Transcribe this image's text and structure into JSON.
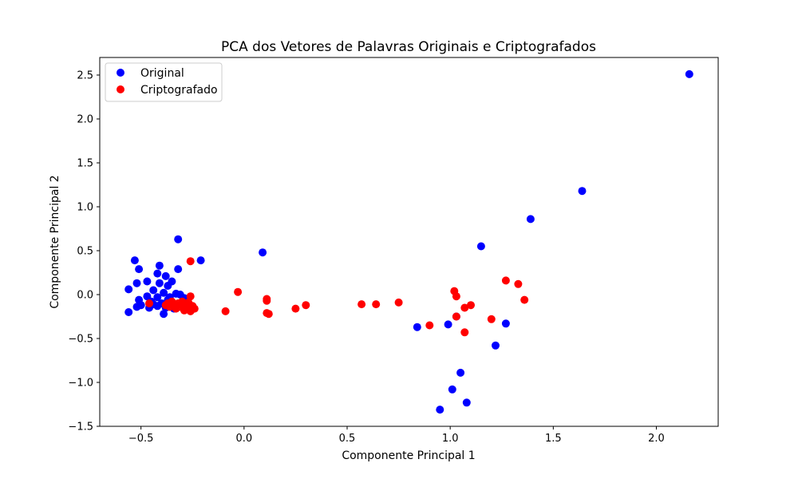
{
  "chart_data": {
    "type": "scatter",
    "title": "PCA dos Vetores de Palavras Originais e Criptografados",
    "xlabel": "Componente Principal 1",
    "ylabel": "Componente Principal 2",
    "xlim": [
      -0.7,
      2.3
    ],
    "ylim": [
      -1.5,
      2.7
    ],
    "xticks": [
      -0.5,
      0.0,
      0.5,
      1.0,
      1.5,
      2.0
    ],
    "xtick_labels": [
      "−0.5",
      "0.0",
      "0.5",
      "1.0",
      "1.5",
      "2.0"
    ],
    "yticks": [
      -1.5,
      -1.0,
      -0.5,
      0.0,
      0.5,
      1.0,
      1.5,
      2.0,
      2.5
    ],
    "ytick_labels": [
      "−1.5",
      "−1.0",
      "−0.5",
      "0.0",
      "0.5",
      "1.0",
      "1.5",
      "2.0",
      "2.5"
    ],
    "grid": false,
    "legend_position": "top-left",
    "series": [
      {
        "name": "Original",
        "color": "#0000ff",
        "points": [
          [
            2.16,
            2.51
          ],
          [
            1.64,
            1.18
          ],
          [
            1.39,
            0.86
          ],
          [
            1.15,
            0.55
          ],
          [
            1.27,
            -0.33
          ],
          [
            1.22,
            -0.58
          ],
          [
            1.05,
            -0.89
          ],
          [
            1.08,
            -1.23
          ],
          [
            1.01,
            -1.08
          ],
          [
            0.95,
            -1.31
          ],
          [
            0.84,
            -0.37
          ],
          [
            0.99,
            -0.34
          ],
          [
            1.03,
            -0.25
          ],
          [
            0.09,
            0.48
          ],
          [
            -0.32,
            0.63
          ],
          [
            -0.21,
            0.39
          ],
          [
            -0.53,
            0.39
          ],
          [
            -0.51,
            0.29
          ],
          [
            -0.41,
            0.33
          ],
          [
            -0.32,
            0.29
          ],
          [
            -0.42,
            0.24
          ],
          [
            -0.38,
            0.21
          ],
          [
            -0.35,
            0.15
          ],
          [
            -0.47,
            0.15
          ],
          [
            -0.41,
            0.13
          ],
          [
            -0.37,
            0.1
          ],
          [
            -0.52,
            0.13
          ],
          [
            -0.56,
            0.06
          ],
          [
            -0.44,
            0.05
          ],
          [
            -0.39,
            0.02
          ],
          [
            -0.33,
            0.01
          ],
          [
            -0.31,
            0.0
          ],
          [
            -0.47,
            -0.02
          ],
          [
            -0.42,
            -0.03
          ],
          [
            -0.36,
            -0.03
          ],
          [
            -0.29,
            -0.04
          ],
          [
            -0.51,
            -0.06
          ],
          [
            -0.45,
            -0.08
          ],
          [
            -0.4,
            -0.1
          ],
          [
            -0.35,
            -0.09
          ],
          [
            -0.5,
            -0.12
          ],
          [
            -0.42,
            -0.13
          ],
          [
            -0.46,
            -0.15
          ],
          [
            -0.38,
            -0.15
          ],
          [
            -0.52,
            -0.14
          ],
          [
            -0.56,
            -0.2
          ],
          [
            -0.39,
            -0.22
          ],
          [
            -0.34,
            -0.16
          ],
          [
            -0.44,
            -0.11
          ],
          [
            -0.37,
            -0.06
          ]
        ]
      },
      {
        "name": "Criptografado",
        "color": "#ff0000",
        "points": [
          [
            -0.26,
            0.38
          ],
          [
            -0.26,
            -0.02
          ],
          [
            -0.03,
            0.03
          ],
          [
            -0.09,
            -0.19
          ],
          [
            0.11,
            -0.05
          ],
          [
            0.11,
            -0.07
          ],
          [
            0.11,
            -0.21
          ],
          [
            0.12,
            -0.22
          ],
          [
            0.25,
            -0.16
          ],
          [
            0.3,
            -0.12
          ],
          [
            0.57,
            -0.11
          ],
          [
            0.64,
            -0.11
          ],
          [
            0.75,
            -0.09
          ],
          [
            0.9,
            -0.35
          ],
          [
            1.02,
            0.04
          ],
          [
            1.03,
            -0.02
          ],
          [
            1.03,
            -0.25
          ],
          [
            1.07,
            -0.15
          ],
          [
            1.1,
            -0.12
          ],
          [
            1.07,
            -0.43
          ],
          [
            1.2,
            -0.28
          ],
          [
            1.27,
            0.16
          ],
          [
            1.33,
            0.12
          ],
          [
            1.36,
            -0.06
          ],
          [
            -0.24,
            -0.16
          ],
          [
            -0.26,
            -0.19
          ],
          [
            -0.28,
            -0.12
          ],
          [
            -0.29,
            -0.18
          ],
          [
            -0.3,
            -0.08
          ],
          [
            -0.31,
            -0.14
          ],
          [
            -0.32,
            -0.1
          ],
          [
            -0.33,
            -0.16
          ],
          [
            -0.34,
            -0.12
          ],
          [
            -0.35,
            -0.08
          ],
          [
            -0.36,
            -0.14
          ],
          [
            -0.37,
            -0.1
          ],
          [
            -0.38,
            -0.12
          ],
          [
            -0.46,
            -0.1
          ],
          [
            -0.27,
            -0.09
          ],
          [
            -0.25,
            -0.13
          ]
        ]
      }
    ]
  }
}
